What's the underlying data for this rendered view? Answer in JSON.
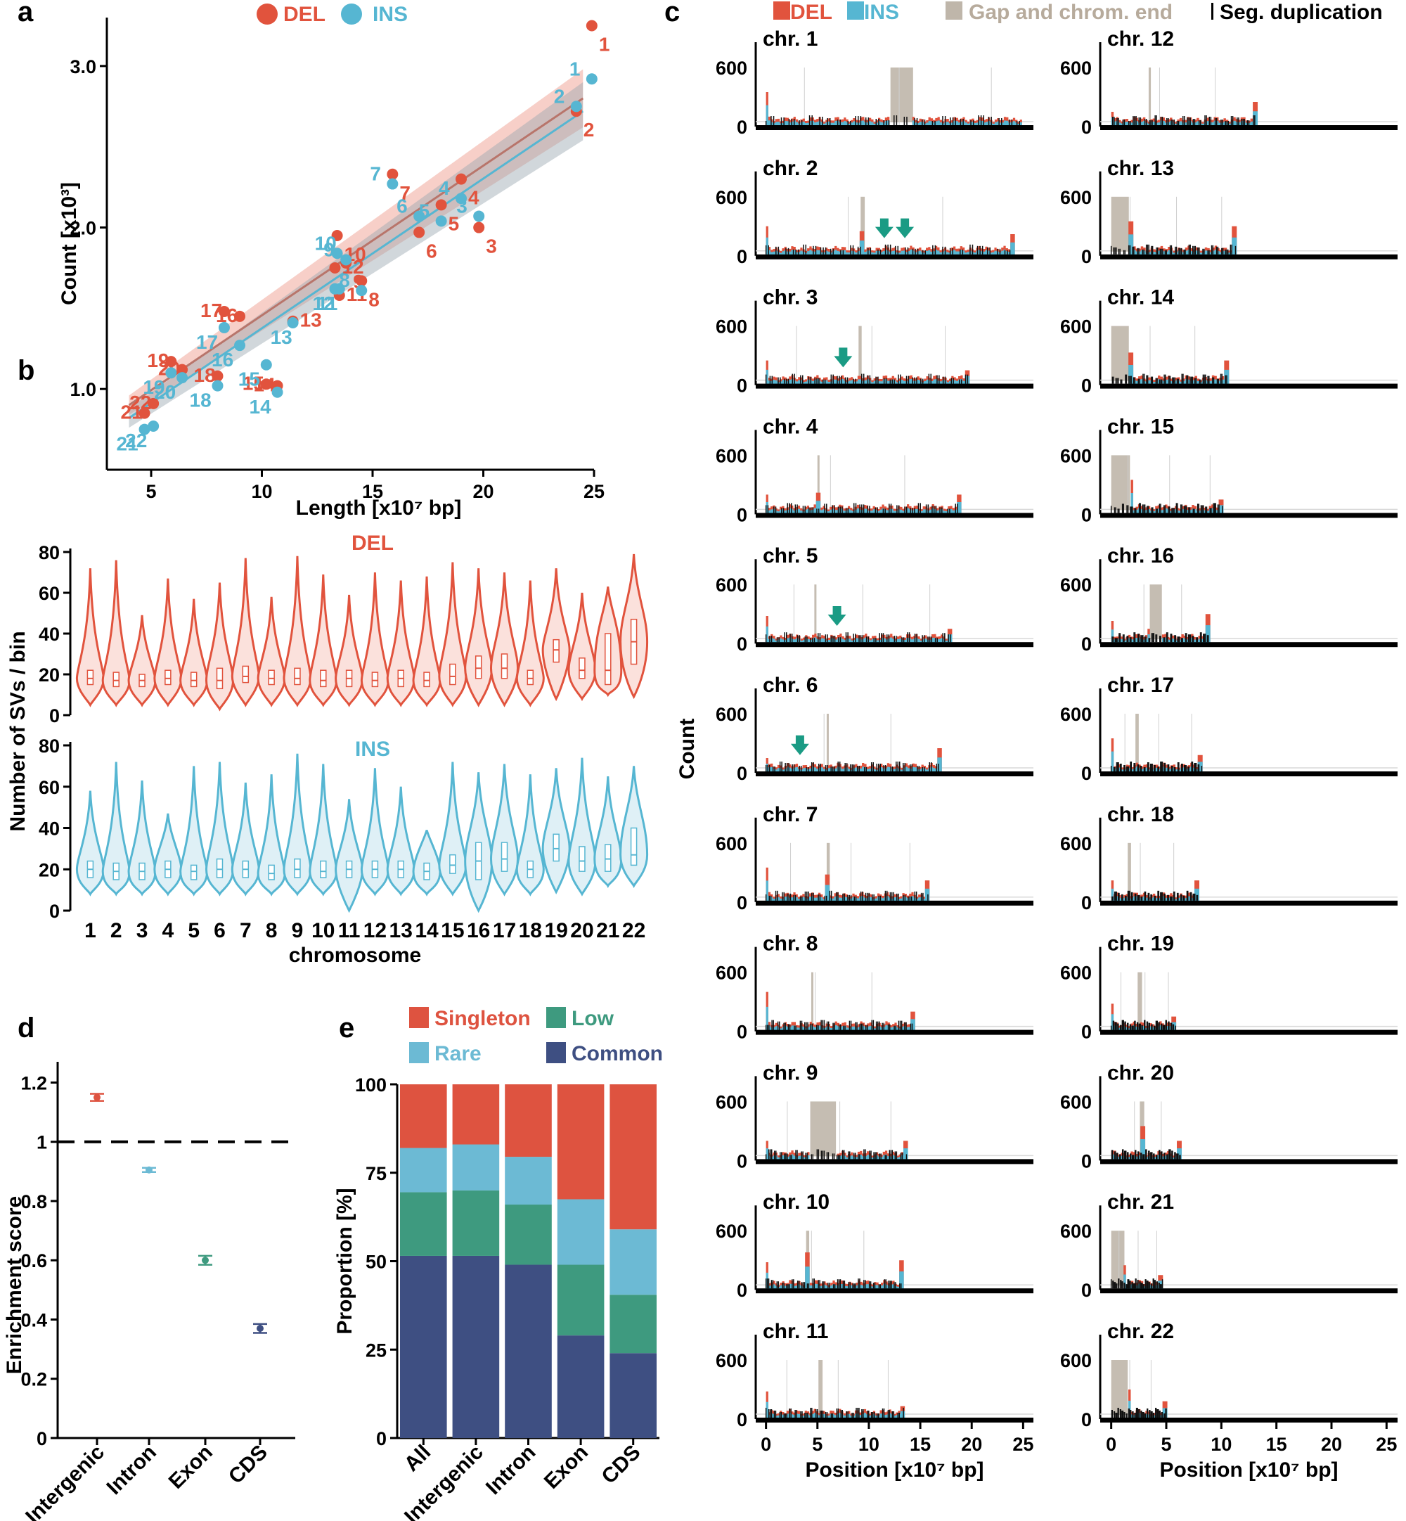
{
  "panels": {
    "a": "a",
    "b": "b",
    "c": "c",
    "d": "d",
    "e": "e"
  },
  "colors": {
    "del": "#e1533d",
    "ins": "#56b6d2",
    "gap": "#bfb6aa",
    "singleton": "#de5340",
    "rare": "#6cbad4",
    "low": "#3e9a7f",
    "common": "#3e4f82",
    "arrow": "#1a9b84"
  },
  "chart_data": [
    {
      "panel": "a",
      "type": "scatter",
      "xlabel": "Length [x10⁷ bp]",
      "ylabel": "Count [x10³]",
      "xlim": [
        3,
        25
      ],
      "ylim": [
        0.5,
        3.3
      ],
      "xticks": [
        "5",
        "10",
        "15",
        "20",
        "25"
      ],
      "yticks": [
        "1.0",
        "2.0",
        "3.0"
      ],
      "legend": [
        "DEL",
        "INS"
      ],
      "series": [
        {
          "name": "DEL",
          "labels": [
            "1",
            "2",
            "3",
            "4",
            "5",
            "6",
            "7",
            "8",
            "9",
            "10",
            "11",
            "12",
            "13",
            "14",
            "15",
            "16",
            "17",
            "18",
            "19",
            "20",
            "21",
            "22"
          ],
          "x": [
            24.9,
            24.2,
            19.8,
            19.0,
            18.1,
            17.1,
            15.9,
            14.5,
            13.8,
            13.4,
            13.5,
            13.3,
            11.4,
            10.7,
            10.2,
            9.0,
            8.3,
            8.0,
            5.9,
            6.4,
            4.7,
            5.1
          ],
          "y": [
            3.25,
            2.72,
            2.0,
            2.3,
            2.14,
            1.97,
            2.33,
            1.67,
            1.78,
            1.95,
            1.58,
            1.75,
            1.42,
            1.02,
            1.03,
            1.45,
            1.48,
            1.08,
            1.17,
            1.12,
            0.85,
            0.91
          ]
        },
        {
          "name": "INS",
          "labels": [
            "1",
            "2",
            "3",
            "4",
            "5",
            "6",
            "7",
            "8",
            "9",
            "10",
            "11",
            "12",
            "13",
            "14",
            "15",
            "16",
            "17",
            "18",
            "19",
            "20",
            "21",
            "22"
          ],
          "x": [
            24.9,
            24.2,
            19.8,
            19.0,
            18.1,
            17.1,
            15.9,
            14.5,
            13.8,
            13.4,
            13.5,
            13.3,
            11.4,
            10.7,
            10.2,
            9.0,
            8.3,
            8.0,
            5.9,
            6.4,
            4.7,
            5.1
          ],
          "y": [
            2.92,
            2.75,
            2.07,
            2.18,
            2.04,
            2.07,
            2.27,
            1.61,
            1.8,
            1.84,
            1.62,
            1.62,
            1.41,
            0.98,
            1.15,
            1.27,
            1.38,
            1.02,
            1.1,
            1.07,
            0.75,
            0.77
          ]
        }
      ],
      "fits": [
        {
          "name": "DEL",
          "x": [
            4,
            24.5
          ],
          "y": [
            0.9,
            2.8
          ]
        },
        {
          "name": "INS",
          "x": [
            4,
            24.5
          ],
          "y": [
            0.82,
            2.72
          ]
        }
      ]
    },
    {
      "panel": "b",
      "type": "violin",
      "xlabel": "chromosome",
      "ylabel": "Number of SVs / bin",
      "categories": [
        "1",
        "2",
        "3",
        "4",
        "5",
        "6",
        "7",
        "8",
        "9",
        "10",
        "11",
        "12",
        "13",
        "14",
        "15",
        "16",
        "17",
        "18",
        "19",
        "20",
        "21",
        "22"
      ],
      "yticks": [
        "0",
        "20",
        "40",
        "60",
        "80"
      ],
      "ylim": [
        0,
        80
      ],
      "series": [
        {
          "name": "DEL",
          "max": [
            72,
            76,
            49,
            67,
            57,
            65,
            77,
            58,
            78,
            69,
            59,
            70,
            66,
            68,
            75,
            72,
            70,
            66,
            72,
            60,
            63,
            79
          ],
          "min": [
            5,
            5,
            5,
            5,
            5,
            3,
            5,
            5,
            5,
            5,
            5,
            5,
            5,
            5,
            5,
            5,
            5,
            5,
            8,
            8,
            10,
            9
          ],
          "median": [
            18,
            17,
            17,
            18,
            17,
            17,
            19,
            18,
            18,
            17,
            18,
            17,
            18,
            17,
            19,
            23,
            23,
            18,
            32,
            22,
            22,
            36
          ],
          "q1": [
            15,
            14,
            14,
            15,
            14,
            13,
            16,
            15,
            15,
            14,
            14,
            14,
            14,
            14,
            15,
            18,
            18,
            15,
            26,
            18,
            15,
            25
          ],
          "q3": [
            22,
            21,
            20,
            22,
            21,
            23,
            24,
            22,
            23,
            22,
            22,
            21,
            22,
            21,
            25,
            29,
            30,
            22,
            37,
            28,
            40,
            47
          ]
        },
        {
          "name": "INS",
          "max": [
            58,
            72,
            63,
            47,
            70,
            72,
            62,
            66,
            76,
            71,
            54,
            69,
            60,
            39,
            72,
            67,
            71,
            66,
            69,
            74,
            65,
            70
          ],
          "min": [
            8,
            8,
            8,
            8,
            8,
            8,
            8,
            8,
            8,
            8,
            0,
            8,
            8,
            8,
            8,
            0,
            8,
            8,
            9,
            8,
            12,
            12
          ],
          "median": [
            20,
            19,
            19,
            20,
            19,
            20,
            20,
            18,
            20,
            19,
            20,
            20,
            20,
            19,
            22,
            24,
            25,
            20,
            30,
            24,
            25,
            27
          ],
          "q1": [
            16,
            15,
            15,
            16,
            15,
            16,
            16,
            15,
            16,
            16,
            16,
            16,
            16,
            15,
            18,
            15,
            19,
            16,
            24,
            19,
            19,
            22
          ],
          "q3": [
            24,
            23,
            23,
            24,
            22,
            25,
            24,
            22,
            25,
            24,
            24,
            24,
            24,
            23,
            27,
            33,
            33,
            24,
            37,
            31,
            32,
            40
          ]
        }
      ]
    },
    {
      "panel": "c",
      "type": "histogram",
      "ylabel": "Count",
      "xlabel": "Position [x10⁷ bp]",
      "legend": [
        "DEL",
        "INS",
        "Gap and chrom. end",
        "Seg. duplication"
      ],
      "ytick_labels": [
        "0",
        "600"
      ],
      "xticks": [
        "0",
        "5",
        "10",
        "15",
        "20",
        "25"
      ],
      "xlim": [
        -1,
        26
      ],
      "chromosomes": [
        {
          "label": "chr. 1",
          "length": 24.9,
          "gaps": [
            [
              12.1,
              14.3
            ]
          ],
          "peaks": [
            [
              0.1,
              350
            ],
            [
              12.3,
              600
            ]
          ],
          "arrows": []
        },
        {
          "label": "chr. 2",
          "length": 24.2,
          "gaps": [
            [
              9.2,
              9.6
            ]
          ],
          "peaks": [
            [
              0.1,
              300
            ],
            [
              9.4,
              250
            ],
            [
              24.0,
              220
            ]
          ],
          "arrows": [
            11.5,
            13.5
          ]
        },
        {
          "label": "chr. 3",
          "length": 19.8,
          "gaps": [
            [
              9.0,
              9.3
            ]
          ],
          "peaks": [
            [
              0.1,
              250
            ],
            [
              19.6,
              150
            ]
          ],
          "arrows": [
            7.5
          ]
        },
        {
          "label": "chr. 4",
          "length": 19.0,
          "gaps": [
            [
              5.0,
              5.2
            ]
          ],
          "peaks": [
            [
              0.1,
              200
            ],
            [
              5.0,
              220
            ],
            [
              18.8,
              200
            ]
          ],
          "arrows": []
        },
        {
          "label": "chr. 5",
          "length": 18.1,
          "gaps": [
            [
              4.7,
              4.9
            ]
          ],
          "peaks": [
            [
              0.1,
              280
            ],
            [
              17.9,
              150
            ]
          ],
          "arrows": [
            6.9
          ]
        },
        {
          "label": "chr. 6",
          "length": 17.1,
          "gaps": [
            [
              5.9,
              6.1
            ]
          ],
          "peaks": [
            [
              0.1,
              150
            ],
            [
              16.9,
              250
            ]
          ],
          "arrows": [
            3.3
          ]
        },
        {
          "label": "chr. 7",
          "length": 15.9,
          "gaps": [
            [
              5.9,
              6.2
            ]
          ],
          "peaks": [
            [
              0.1,
              350
            ],
            [
              6.0,
              280
            ],
            [
              15.7,
              220
            ]
          ],
          "arrows": []
        },
        {
          "label": "chr. 8",
          "length": 14.5,
          "gaps": [
            [
              4.4,
              4.6
            ]
          ],
          "peaks": [
            [
              0.1,
              400
            ],
            [
              14.3,
              200
            ]
          ],
          "arrows": []
        },
        {
          "label": "chr. 9",
          "length": 13.8,
          "gaps": [
            [
              4.3,
              6.8
            ]
          ],
          "peaks": [
            [
              0.1,
              200
            ],
            [
              4.4,
              400
            ],
            [
              6.6,
              350
            ],
            [
              13.6,
              200
            ]
          ],
          "arrows": []
        },
        {
          "label": "chr. 10",
          "length": 13.4,
          "gaps": [
            [
              3.9,
              4.2
            ]
          ],
          "peaks": [
            [
              0.1,
              280
            ],
            [
              4.0,
              380
            ],
            [
              13.2,
              300
            ]
          ],
          "arrows": []
        },
        {
          "label": "chr. 11",
          "length": 13.5,
          "gaps": [
            [
              5.1,
              5.5
            ]
          ],
          "peaks": [
            [
              0.1,
              280
            ],
            [
              13.3,
              130
            ]
          ],
          "arrows": []
        },
        {
          "label": "chr. 12",
          "length": 13.3,
          "gaps": [
            [
              3.4,
              3.6
            ]
          ],
          "peaks": [
            [
              0.1,
              150
            ],
            [
              13.1,
              250
            ]
          ],
          "arrows": []
        },
        {
          "label": "chr. 13",
          "length": 11.4,
          "gaps": [
            [
              0.0,
              1.6
            ]
          ],
          "peaks": [
            [
              1.7,
              350
            ],
            [
              11.2,
              300
            ]
          ],
          "arrows": []
        },
        {
          "label": "chr. 14",
          "length": 10.7,
          "gaps": [
            [
              0.0,
              1.6
            ]
          ],
          "peaks": [
            [
              1.7,
              330
            ],
            [
              10.5,
              250
            ]
          ],
          "arrows": []
        },
        {
          "label": "chr. 15",
          "length": 10.2,
          "gaps": [
            [
              0.0,
              1.7
            ]
          ],
          "peaks": [
            [
              1.8,
              350
            ],
            [
              10.0,
              150
            ]
          ],
          "arrows": []
        },
        {
          "label": "chr. 16",
          "length": 9.0,
          "gaps": [
            [
              3.5,
              4.6
            ]
          ],
          "peaks": [
            [
              0.1,
              230
            ],
            [
              3.5,
              150
            ],
            [
              8.8,
              300
            ]
          ],
          "arrows": []
        },
        {
          "label": "chr. 17",
          "length": 8.3,
          "gaps": [
            [
              2.2,
              2.5
            ]
          ],
          "peaks": [
            [
              0.1,
              350
            ],
            [
              8.1,
              180
            ]
          ],
          "arrows": []
        },
        {
          "label": "chr. 18",
          "length": 8.0,
          "gaps": [
            [
              1.5,
              1.8
            ]
          ],
          "peaks": [
            [
              0.1,
              220
            ],
            [
              7.8,
              220
            ]
          ],
          "arrows": []
        },
        {
          "label": "chr. 19",
          "length": 5.9,
          "gaps": [
            [
              2.4,
              2.8
            ]
          ],
          "peaks": [
            [
              0.1,
              280
            ],
            [
              5.7,
              150
            ]
          ],
          "arrows": []
        },
        {
          "label": "chr. 20",
          "length": 6.4,
          "gaps": [
            [
              2.6,
              3.0
            ]
          ],
          "peaks": [
            [
              0.1,
              100
            ],
            [
              2.8,
              350
            ],
            [
              6.2,
              200
            ]
          ],
          "arrows": []
        },
        {
          "label": "chr. 21",
          "length": 4.7,
          "gaps": [
            [
              0.0,
              1.2
            ]
          ],
          "peaks": [
            [
              1.2,
              250
            ],
            [
              4.5,
              150
            ]
          ],
          "arrows": []
        },
        {
          "label": "chr. 22",
          "length": 5.1,
          "gaps": [
            [
              0.0,
              1.5
            ]
          ],
          "peaks": [
            [
              1.6,
              300
            ],
            [
              4.9,
              180
            ]
          ],
          "arrows": []
        }
      ]
    },
    {
      "panel": "d",
      "type": "scatter",
      "ylabel": "Enrichment score",
      "categories": [
        "Intergenic",
        "Intron",
        "Exon",
        "CDS"
      ],
      "values": [
        1.15,
        0.905,
        0.6,
        0.37
      ],
      "errors": [
        0.012,
        0.007,
        0.015,
        0.015
      ],
      "reference": 1,
      "ylim": [
        0,
        1.27
      ],
      "yticks": [
        "0",
        "0.2",
        "0.4",
        "0.6",
        "0.8",
        "1",
        "1.2"
      ]
    },
    {
      "panel": "e",
      "type": "bar",
      "stacked": true,
      "ylabel": "Proportion [%]",
      "categories": [
        "All",
        "Intergenic",
        "Intron",
        "Exon",
        "CDS"
      ],
      "ylim": [
        0,
        100
      ],
      "yticks": [
        "0",
        "25",
        "50",
        "75",
        "100"
      ],
      "legend": [
        "Singleton",
        "Low",
        "Rare",
        "Common"
      ],
      "series": [
        {
          "name": "Common",
          "values": [
            51.5,
            51.5,
            49,
            29,
            24
          ]
        },
        {
          "name": "Low",
          "values": [
            18,
            18.5,
            17,
            20,
            16.5
          ]
        },
        {
          "name": "Rare",
          "values": [
            12.5,
            13,
            13.5,
            18.5,
            18.5
          ]
        },
        {
          "name": "Singleton",
          "values": [
            18,
            17,
            20.5,
            32.5,
            41
          ]
        }
      ]
    }
  ]
}
